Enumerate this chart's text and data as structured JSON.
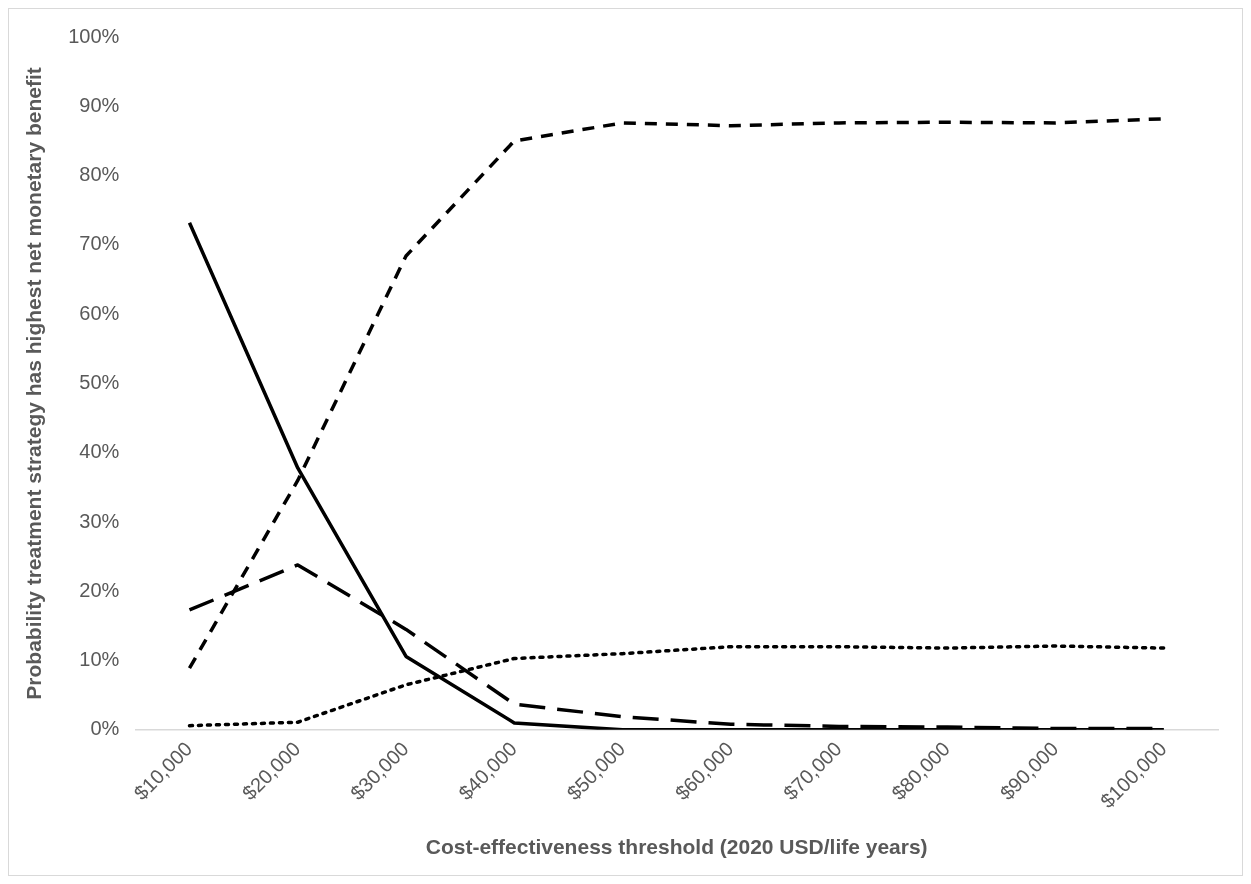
{
  "chart_data": {
    "type": "line",
    "xlabel": "Cost-effectiveness threshold (2020 USD/life years)",
    "ylabel": "Probability treatment strategy has highest net monetary benefit",
    "categories": [
      "$10,000",
      "$20,000",
      "$30,000",
      "$40,000",
      "$50,000",
      "$60,000",
      "$70,000",
      "$80,000",
      "$90,000",
      "$100,000"
    ],
    "series": [
      {
        "color": "#000000",
        "line_style": "solid",
        "values": [
          73.2,
          37.8,
          10.6,
          1.0,
          0,
          0,
          0,
          0,
          0,
          0
        ]
      },
      {
        "color": "#000000",
        "line_style": "dashed",
        "values": [
          8.9,
          36,
          68.4,
          85,
          87.6,
          87.2,
          87.6,
          87.7,
          87.6,
          88.2
        ]
      },
      {
        "color": "#000000",
        "line_style": "longdash",
        "values": [
          17.3,
          23.8,
          14.5,
          3.7,
          1.9,
          0.8,
          0.5,
          0.4,
          0.2,
          0.2
        ]
      },
      {
        "color": "#000000",
        "line_style": "dotted",
        "values": [
          0.6,
          1.1,
          6.5,
          10.3,
          11,
          12,
          12,
          11.8,
          12.1,
          11.8
        ]
      }
    ],
    "ylim": [
      0,
      100
    ],
    "yticks": [
      {
        "value": 0,
        "label": "0%"
      },
      {
        "value": 10,
        "label": "10%"
      },
      {
        "value": 20,
        "label": "20%"
      },
      {
        "value": 30,
        "label": "30%"
      },
      {
        "value": 40,
        "label": "40%"
      },
      {
        "value": 50,
        "label": "50%"
      },
      {
        "value": 60,
        "label": "60%"
      },
      {
        "value": 70,
        "label": "70%"
      },
      {
        "value": 80,
        "label": "80%"
      },
      {
        "value": 90,
        "label": "90%"
      },
      {
        "value": 100,
        "label": "100%"
      }
    ],
    "grid": false,
    "legend": false,
    "marker": "none"
  }
}
